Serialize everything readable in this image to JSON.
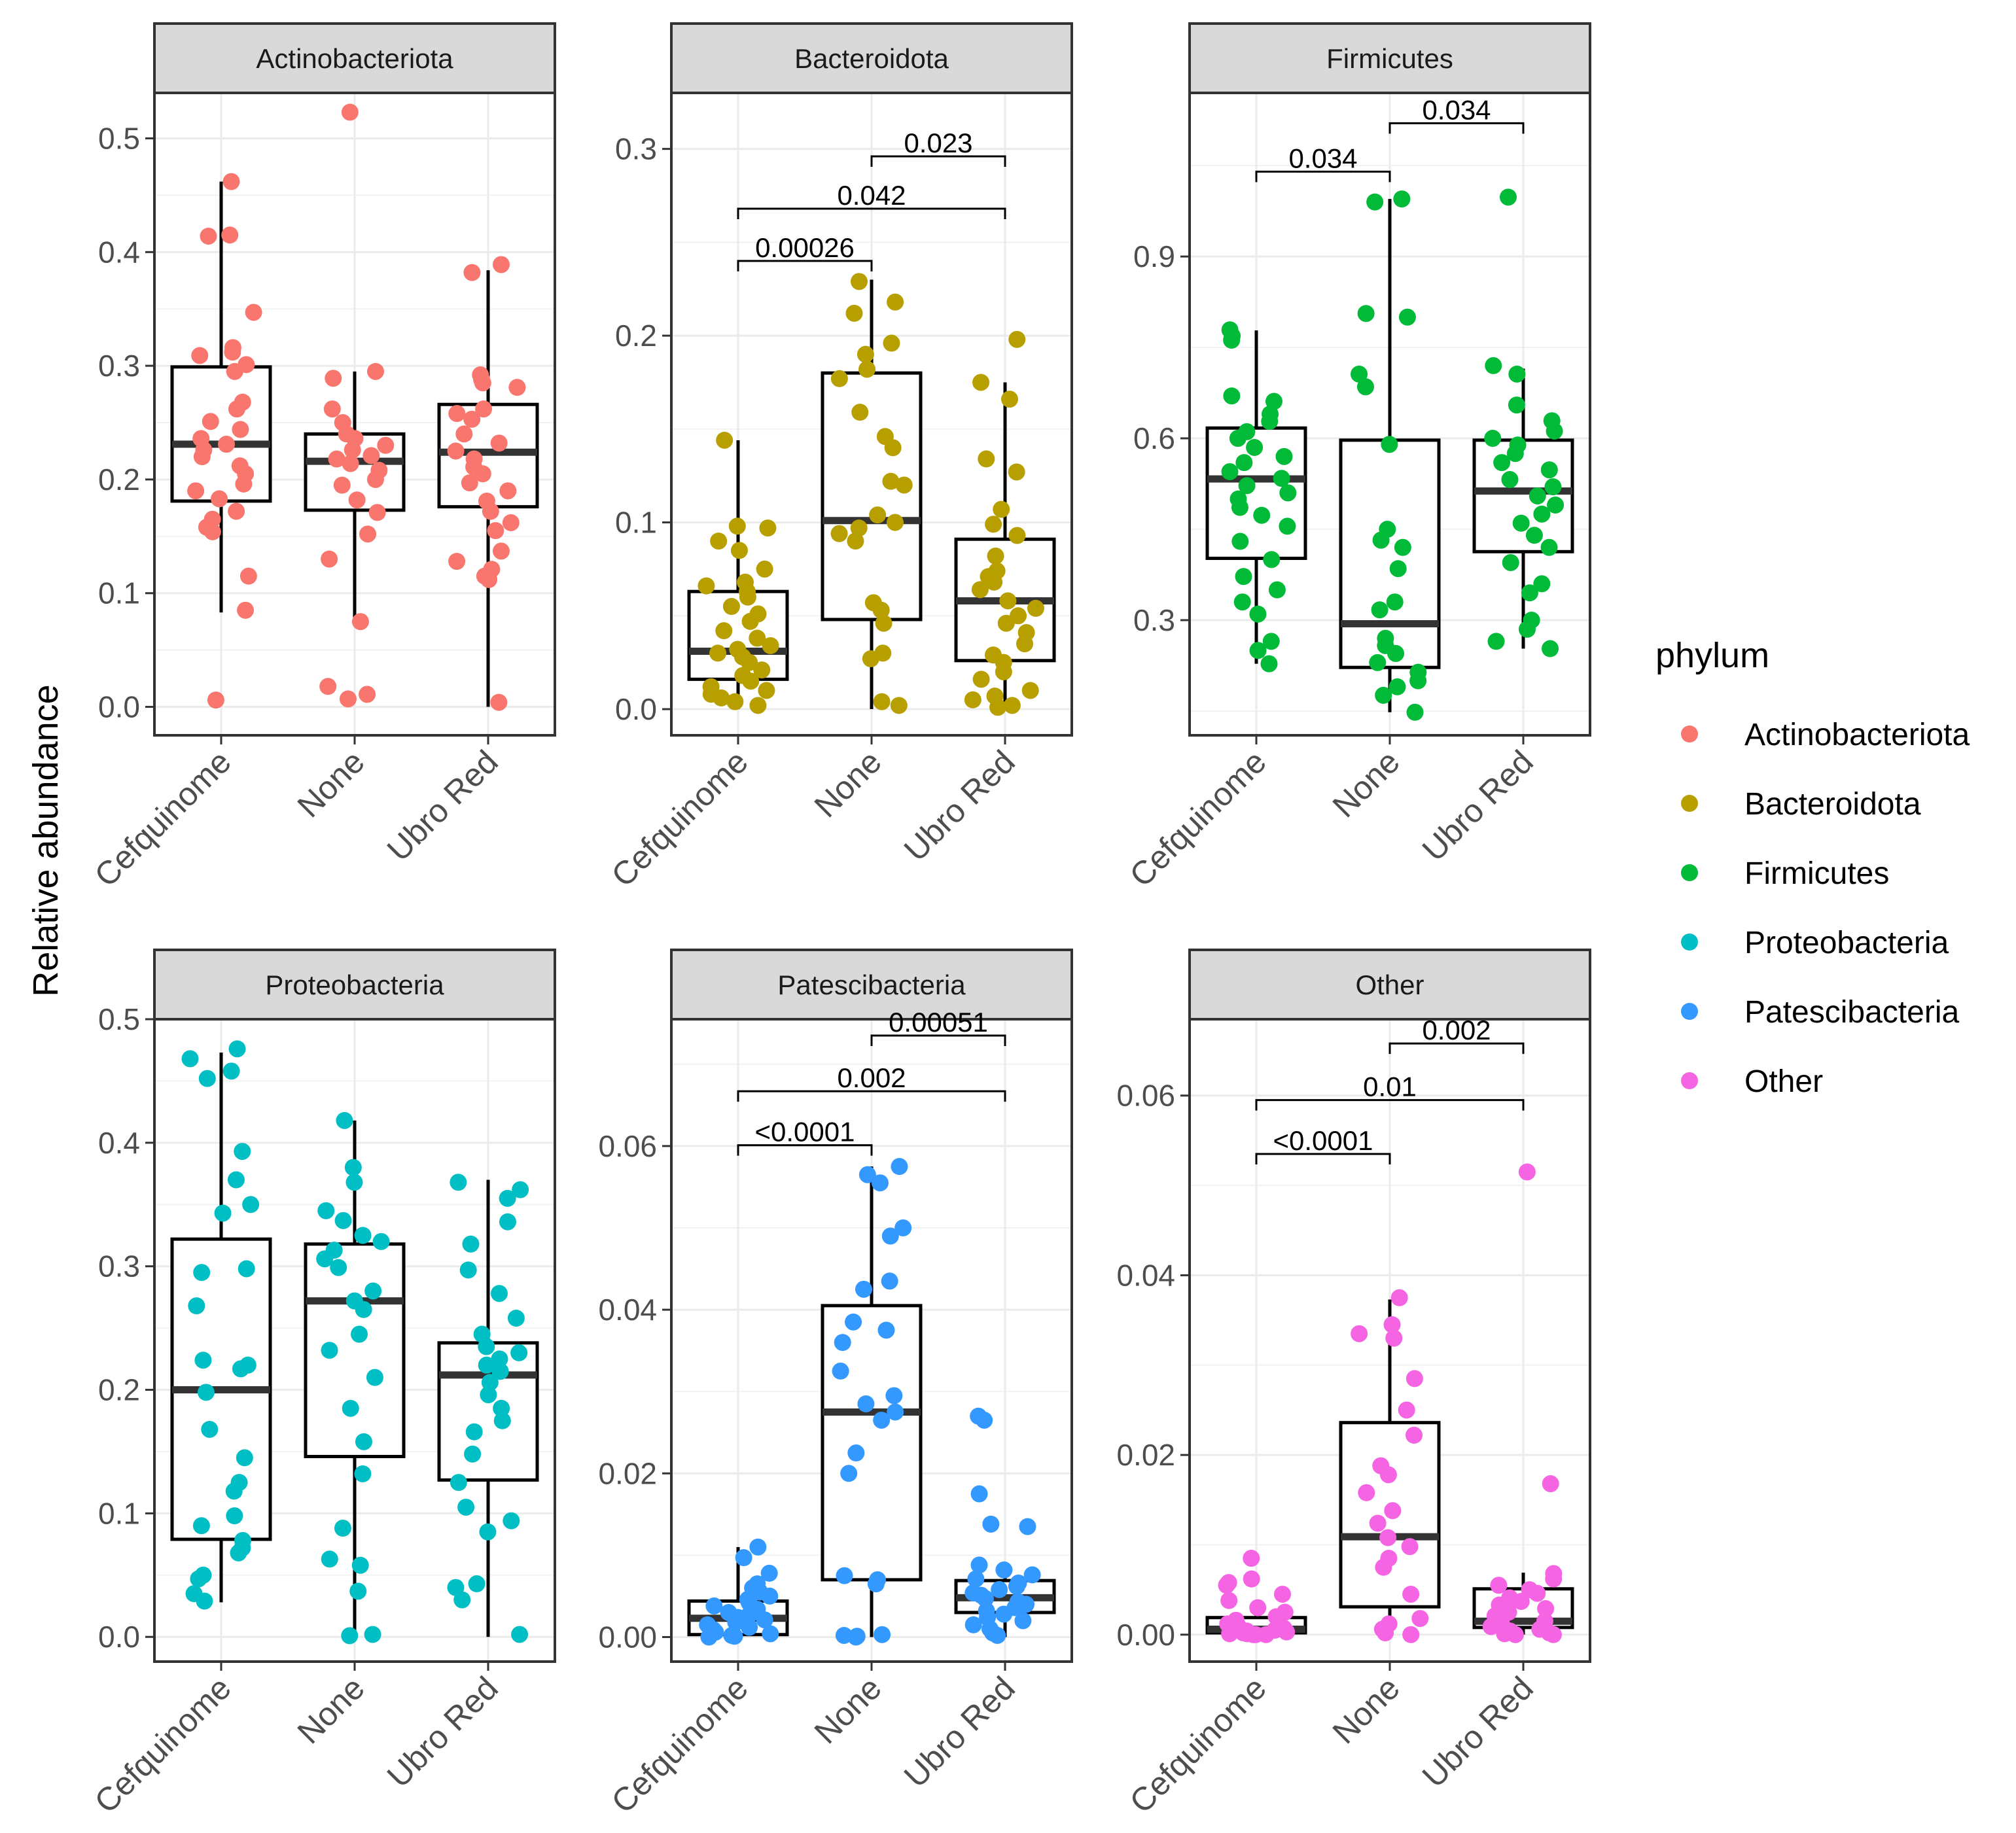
{
  "chart_data": {
    "type": "boxplot",
    "ylabel": "Relative abundance",
    "groups": [
      "Cefquinome",
      "None",
      "Ubro Red"
    ],
    "legend": {
      "title": "phylum",
      "entries": [
        {
          "label": "Actinobacteriota",
          "color": "#F8766D"
        },
        {
          "label": "Bacteroidota",
          "color": "#B79F00"
        },
        {
          "label": "Firmicutes",
          "color": "#00BA38"
        },
        {
          "label": "Proteobacteria",
          "color": "#00BFC4"
        },
        {
          "label": "Patescibacteria",
          "color": "#3399FF"
        },
        {
          "label": "Other",
          "color": "#F564E3"
        }
      ]
    },
    "panels": [
      {
        "title": "Actinobacteriota",
        "color": "#F8766D",
        "ylim": [
          -0.025,
          0.54
        ],
        "ticks": [
          0.0,
          0.1,
          0.2,
          0.3,
          0.4,
          0.5
        ],
        "tick_labels": [
          "0.0",
          "0.1",
          "0.2",
          "0.3",
          "0.4",
          "0.5"
        ],
        "boxes": [
          {
            "group": "Cefquinome",
            "q1": 0.181,
            "median": 0.231,
            "q3": 0.299,
            "lower": 0.083,
            "upper": 0.462
          },
          {
            "group": "None",
            "q1": 0.173,
            "median": 0.216,
            "q3": 0.24,
            "lower": 0.072,
            "upper": 0.295
          },
          {
            "group": "Ubro Red",
            "q1": 0.176,
            "median": 0.224,
            "q3": 0.266,
            "lower": 0.0,
            "upper": 0.384
          }
        ],
        "points": [
          [
            0.462,
            0.414,
            0.415,
            0.347,
            0.316,
            0.312,
            0.309,
            0.301,
            0.295,
            0.268,
            0.262,
            0.251,
            0.244,
            0.236,
            0.231,
            0.226,
            0.22,
            0.212,
            0.205,
            0.196,
            0.19,
            0.183,
            0.172,
            0.165,
            0.158,
            0.154,
            0.115,
            0.085,
            0.006
          ],
          [
            0.523,
            0.295,
            0.289,
            0.262,
            0.25,
            0.24,
            0.236,
            0.23,
            0.226,
            0.221,
            0.218,
            0.214,
            0.208,
            0.2,
            0.195,
            0.182,
            0.171,
            0.152,
            0.13,
            0.075,
            0.018,
            0.011,
            0.007
          ],
          [
            0.389,
            0.382,
            0.292,
            0.288,
            0.285,
            0.281,
            0.262,
            0.258,
            0.253,
            0.24,
            0.232,
            0.225,
            0.218,
            0.211,
            0.205,
            0.197,
            0.19,
            0.181,
            0.172,
            0.162,
            0.155,
            0.137,
            0.128,
            0.121,
            0.115,
            0.112,
            0.004
          ]
        ],
        "comparisons": []
      },
      {
        "title": "Bacteroidota",
        "color": "#B79F00",
        "ylim": [
          -0.014,
          0.33
        ],
        "ticks": [
          0.0,
          0.1,
          0.2,
          0.3
        ],
        "tick_labels": [
          "0.0",
          "0.1",
          "0.2",
          "0.3"
        ],
        "boxes": [
          {
            "group": "Cefquinome",
            "q1": 0.016,
            "median": 0.031,
            "q3": 0.063,
            "lower": 0.0,
            "upper": 0.144
          },
          {
            "group": "None",
            "q1": 0.048,
            "median": 0.101,
            "q3": 0.18,
            "lower": 0.0,
            "upper": 0.23
          },
          {
            "group": "Ubro Red",
            "q1": 0.026,
            "median": 0.058,
            "q3": 0.091,
            "lower": 0.0,
            "upper": 0.175
          }
        ],
        "points": [
          [
            0.144,
            0.098,
            0.097,
            0.09,
            0.085,
            0.075,
            0.068,
            0.066,
            0.063,
            0.06,
            0.055,
            0.051,
            0.047,
            0.042,
            0.038,
            0.034,
            0.032,
            0.03,
            0.028,
            0.025,
            0.021,
            0.018,
            0.015,
            0.012,
            0.01,
            0.008,
            0.006,
            0.004,
            0.002
          ],
          [
            0.229,
            0.218,
            0.212,
            0.196,
            0.19,
            0.182,
            0.177,
            0.159,
            0.146,
            0.14,
            0.122,
            0.12,
            0.104,
            0.1,
            0.097,
            0.094,
            0.09,
            0.057,
            0.053,
            0.046,
            0.03,
            0.027,
            0.004,
            0.002
          ],
          [
            0.198,
            0.175,
            0.166,
            0.134,
            0.127,
            0.107,
            0.099,
            0.093,
            0.082,
            0.074,
            0.071,
            0.068,
            0.064,
            0.058,
            0.054,
            0.05,
            0.046,
            0.041,
            0.035,
            0.029,
            0.025,
            0.02,
            0.016,
            0.01,
            0.007,
            0.005,
            0.002,
            0.001
          ]
        ],
        "comparisons": [
          {
            "from": 0,
            "to": 1,
            "y": 0.24,
            "label": "0.00026"
          },
          {
            "from": 0,
            "to": 2,
            "y": 0.268,
            "label": "0.042"
          },
          {
            "from": 1,
            "to": 2,
            "y": 0.296,
            "label": "0.023"
          }
        ]
      },
      {
        "title": "Firmicutes",
        "color": "#00BA38",
        "ylim": [
          0.11,
          1.17
        ],
        "ticks": [
          0.3,
          0.6,
          0.9
        ],
        "tick_labels": [
          "0.3",
          "0.6",
          "0.9"
        ],
        "boxes": [
          {
            "group": "Cefquinome",
            "q1": 0.402,
            "median": 0.533,
            "q3": 0.617,
            "lower": 0.228,
            "upper": 0.778
          },
          {
            "group": "None",
            "q1": 0.222,
            "median": 0.294,
            "q3": 0.597,
            "lower": 0.148,
            "upper": 0.995
          },
          {
            "group": "Ubro Red",
            "q1": 0.413,
            "median": 0.513,
            "q3": 0.597,
            "lower": 0.253,
            "upper": 0.715
          }
        ],
        "points": [
          [
            0.779,
            0.769,
            0.762,
            0.67,
            0.661,
            0.64,
            0.628,
            0.611,
            0.6,
            0.585,
            0.57,
            0.56,
            0.545,
            0.534,
            0.522,
            0.51,
            0.5,
            0.486,
            0.473,
            0.455,
            0.43,
            0.4,
            0.372,
            0.35,
            0.33,
            0.31,
            0.265,
            0.25,
            0.228
          ],
          [
            0.995,
            0.99,
            0.806,
            0.8,
            0.706,
            0.685,
            0.59,
            0.45,
            0.432,
            0.42,
            0.385,
            0.33,
            0.317,
            0.27,
            0.258,
            0.245,
            0.23,
            0.214,
            0.2,
            0.19,
            0.176,
            0.148
          ],
          [
            0.998,
            0.72,
            0.706,
            0.655,
            0.629,
            0.612,
            0.6,
            0.589,
            0.575,
            0.56,
            0.548,
            0.532,
            0.52,
            0.505,
            0.49,
            0.475,
            0.46,
            0.44,
            0.42,
            0.395,
            0.36,
            0.345,
            0.3,
            0.285,
            0.265,
            0.253
          ]
        ],
        "comparisons": [
          {
            "from": 0,
            "to": 1,
            "y": 1.04,
            "label": "0.034"
          },
          {
            "from": 1,
            "to": 2,
            "y": 1.12,
            "label": "0.034"
          }
        ]
      },
      {
        "title": "Proteobacteria",
        "color": "#00BFC4",
        "ylim": [
          -0.02,
          0.5
        ],
        "ticks": [
          0.0,
          0.1,
          0.2,
          0.3,
          0.4,
          0.5
        ],
        "tick_labels": [
          "0.0",
          "0.1",
          "0.2",
          "0.3",
          "0.4",
          "0.5"
        ],
        "boxes": [
          {
            "group": "Cefquinome",
            "q1": 0.079,
            "median": 0.2,
            "q3": 0.322,
            "lower": 0.028,
            "upper": 0.473
          },
          {
            "group": "None",
            "q1": 0.146,
            "median": 0.272,
            "q3": 0.318,
            "lower": 0.0,
            "upper": 0.418
          },
          {
            "group": "Ubro Red",
            "q1": 0.127,
            "median": 0.212,
            "q3": 0.238,
            "lower": 0.0,
            "upper": 0.37
          }
        ],
        "points": [
          [
            0.476,
            0.468,
            0.458,
            0.452,
            0.393,
            0.37,
            0.35,
            0.343,
            0.298,
            0.295,
            0.268,
            0.224,
            0.22,
            0.217,
            0.198,
            0.168,
            0.145,
            0.125,
            0.118,
            0.098,
            0.09,
            0.078,
            0.072,
            0.068,
            0.05,
            0.047,
            0.035,
            0.029
          ],
          [
            0.418,
            0.38,
            0.368,
            0.345,
            0.337,
            0.325,
            0.32,
            0.313,
            0.306,
            0.299,
            0.28,
            0.272,
            0.265,
            0.245,
            0.232,
            0.21,
            0.185,
            0.158,
            0.132,
            0.088,
            0.063,
            0.058,
            0.037,
            0.002,
            0.001
          ],
          [
            0.368,
            0.362,
            0.355,
            0.336,
            0.318,
            0.297,
            0.278,
            0.258,
            0.245,
            0.235,
            0.23,
            0.225,
            0.22,
            0.215,
            0.206,
            0.196,
            0.185,
            0.175,
            0.166,
            0.148,
            0.125,
            0.105,
            0.094,
            0.085,
            0.043,
            0.04,
            0.03,
            0.002
          ]
        ],
        "comparisons": []
      },
      {
        "title": "Patescibacteria",
        "color": "#3399FF",
        "ylim": [
          -0.003,
          0.0755
        ],
        "ticks": [
          0.0,
          0.02,
          0.04,
          0.06
        ],
        "tick_labels": [
          "0.00",
          "0.02",
          "0.04",
          "0.06"
        ],
        "boxes": [
          {
            "group": "Cefquinome",
            "q1": 0.0003,
            "median": 0.0023,
            "q3": 0.0044,
            "lower": 0.0,
            "upper": 0.011
          },
          {
            "group": "None",
            "q1": 0.007,
            "median": 0.0275,
            "q3": 0.0405,
            "lower": 0.0,
            "upper": 0.0575
          },
          {
            "group": "Ubro Red",
            "q1": 0.003,
            "median": 0.0048,
            "q3": 0.0069,
            "lower": 0.0,
            "upper": 0.0085
          }
        ],
        "points": [
          [
            0.011,
            0.0097,
            0.0078,
            0.0065,
            0.006,
            0.0055,
            0.005,
            0.0046,
            0.0042,
            0.0038,
            0.0034,
            0.003,
            0.0027,
            0.0024,
            0.0021,
            0.0018,
            0.0015,
            0.0012,
            0.0009,
            0.0006,
            0.0004,
            0.0002,
            0.0001,
            0.0
          ],
          [
            0.0575,
            0.0565,
            0.0555,
            0.05,
            0.049,
            0.0435,
            0.0425,
            0.0385,
            0.0375,
            0.036,
            0.0325,
            0.0295,
            0.0285,
            0.0275,
            0.0265,
            0.0225,
            0.02,
            0.0075,
            0.007,
            0.0065,
            0.0003,
            0.0002,
            0.0001,
            0.0
          ],
          [
            0.027,
            0.0265,
            0.0175,
            0.0138,
            0.0135,
            0.0088,
            0.0082,
            0.0076,
            0.0071,
            0.0066,
            0.0062,
            0.0058,
            0.0054,
            0.0051,
            0.0047,
            0.0043,
            0.004,
            0.0036,
            0.0032,
            0.0028,
            0.0024,
            0.002,
            0.0015,
            0.001,
            0.0005,
            0.0002
          ]
        ],
        "comparisons": [
          {
            "from": 0,
            "to": 1,
            "y": 0.0601,
            "label": "<0.0001"
          },
          {
            "from": 0,
            "to": 2,
            "y": 0.0667,
            "label": "0.002"
          },
          {
            "from": 1,
            "to": 2,
            "y": 0.0735,
            "label": "0.00051"
          }
        ]
      },
      {
        "title": "Other",
        "color": "#F564E3",
        "ylim": [
          -0.003,
          0.0685
        ],
        "ticks": [
          0.0,
          0.02,
          0.04,
          0.06
        ],
        "tick_labels": [
          "0.00",
          "0.02",
          "0.04",
          "0.06"
        ],
        "boxes": [
          {
            "group": "Cefquinome",
            "q1": 0.0002,
            "median": 0.0006,
            "q3": 0.0019,
            "lower": 0.0,
            "upper": 0.0038
          },
          {
            "group": "None",
            "q1": 0.0031,
            "median": 0.0109,
            "q3": 0.0236,
            "lower": 0.0,
            "upper": 0.0373
          },
          {
            "group": "Ubro Red",
            "q1": 0.0008,
            "median": 0.0015,
            "q3": 0.0051,
            "lower": 0.0,
            "upper": 0.0069
          }
        ],
        "points": [
          [
            0.0085,
            0.0062,
            0.0058,
            0.0055,
            0.0045,
            0.0038,
            0.003,
            0.0025,
            0.002,
            0.0016,
            0.0012,
            0.0009,
            0.0007,
            0.0005,
            0.0004,
            0.0003,
            0.0002,
            0.0001,
            0.0001,
            0.0,
            0.0,
            0.0,
            0.0
          ],
          [
            0.0375,
            0.0345,
            0.0335,
            0.033,
            0.0285,
            0.025,
            0.0222,
            0.0188,
            0.0178,
            0.0158,
            0.0138,
            0.0124,
            0.0108,
            0.0098,
            0.0085,
            0.0075,
            0.0045,
            0.0018,
            0.0012,
            0.0006,
            0.0002,
            0.0
          ],
          [
            0.0515,
            0.0168,
            0.0068,
            0.0062,
            0.0055,
            0.005,
            0.0046,
            0.0041,
            0.0037,
            0.0033,
            0.0029,
            0.0025,
            0.0021,
            0.0018,
            0.0015,
            0.0012,
            0.0009,
            0.0006,
            0.0004,
            0.0002,
            0.0001,
            0.0,
            0.0
          ]
        ],
        "comparisons": [
          {
            "from": 0,
            "to": 1,
            "y": 0.0535,
            "label": "<0.0001"
          },
          {
            "from": 0,
            "to": 2,
            "y": 0.0595,
            "label": "0.01"
          },
          {
            "from": 1,
            "to": 2,
            "y": 0.0658,
            "label": "0.002"
          }
        ]
      }
    ]
  }
}
